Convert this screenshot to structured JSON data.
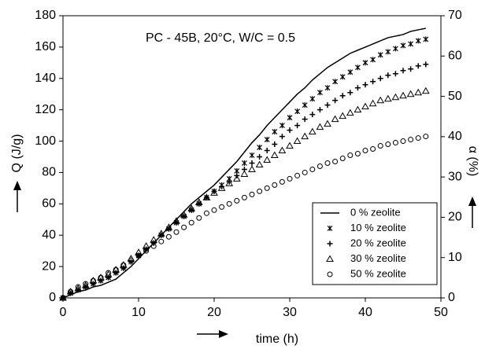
{
  "chart_data": {
    "type": "line",
    "title": "PC - 45B, 20°C, W/C = 0.5",
    "x_label": "time (h)",
    "y_label": "Q (J/g)",
    "y2_label": "α (%)",
    "xlim": [
      0,
      50
    ],
    "xticks": [
      0,
      10,
      20,
      30,
      40,
      50
    ],
    "ylim": [
      0,
      180
    ],
    "yticks": [
      0,
      20,
      40,
      60,
      80,
      100,
      120,
      140,
      160,
      180
    ],
    "y2lim": [
      0,
      70
    ],
    "y2ticks": [
      0,
      10,
      20,
      30,
      40,
      50,
      60,
      70
    ],
    "legend": "lower right",
    "x": [
      0,
      1,
      2,
      3,
      4,
      5,
      6,
      7,
      8,
      9,
      10,
      11,
      12,
      13,
      14,
      15,
      16,
      17,
      18,
      19,
      20,
      21,
      22,
      23,
      24,
      25,
      26,
      27,
      28,
      29,
      30,
      31,
      32,
      33,
      34,
      35,
      36,
      37,
      38,
      39,
      40,
      41,
      42,
      43,
      44,
      45,
      46,
      47,
      48
    ],
    "series": [
      {
        "name": "0 % zeolite",
        "color": "#000000",
        "marker": "none",
        "values": [
          0,
          2,
          4,
          5,
          7,
          8,
          10,
          12,
          16,
          20,
          25,
          30,
          35,
          40,
          45,
          50,
          55,
          60,
          64,
          68,
          72,
          77,
          82,
          87,
          93,
          99,
          104,
          110,
          115,
          120,
          125,
          130,
          134,
          139,
          143,
          147,
          150,
          153,
          156,
          158,
          160,
          162,
          164,
          166,
          167,
          168,
          170,
          171,
          172
        ]
      },
      {
        "name": "10 % zeolite",
        "color": "#000000",
        "marker": "star",
        "values": [
          0,
          3,
          5,
          7,
          9,
          11,
          13,
          16,
          19,
          23,
          27,
          31,
          35,
          40,
          44,
          48,
          52,
          56,
          60,
          64,
          68,
          72,
          76,
          81,
          86,
          91,
          96,
          101,
          106,
          110,
          115,
          119,
          123,
          127,
          131,
          134,
          138,
          141,
          144,
          147,
          150,
          152,
          155,
          157,
          159,
          161,
          162,
          164,
          165
        ]
      },
      {
        "name": "20 % zeolite",
        "color": "#000000",
        "marker": "plus",
        "values": [
          0,
          3,
          5,
          7,
          9,
          11,
          13,
          16,
          19,
          23,
          27,
          31,
          35,
          40,
          44,
          48,
          52,
          56,
          60,
          64,
          68,
          71,
          74,
          78,
          82,
          86,
          90,
          94,
          98,
          103,
          107,
          110,
          114,
          117,
          120,
          123,
          126,
          129,
          131,
          134,
          136,
          138,
          140,
          142,
          143,
          145,
          146,
          148,
          149
        ]
      },
      {
        "name": "30 % zeolite",
        "color": "#000000",
        "marker": "triangle",
        "values": [
          0,
          4,
          6,
          8,
          11,
          13,
          15,
          18,
          21,
          25,
          29,
          33,
          37,
          41,
          45,
          49,
          53,
          57,
          61,
          64,
          67,
          70,
          73,
          76,
          79,
          82,
          85,
          88,
          91,
          94,
          97,
          100,
          103,
          106,
          109,
          111,
          114,
          116,
          118,
          120,
          122,
          124,
          126,
          127,
          128,
          129,
          130,
          131,
          132
        ]
      },
      {
        "name": "50 % zeolite",
        "color": "#000000",
        "marker": "circle",
        "values": [
          0,
          4,
          7,
          9,
          11,
          13,
          16,
          18,
          21,
          24,
          27,
          30,
          33,
          36,
          39,
          42,
          45,
          48,
          51,
          54,
          56,
          58,
          60,
          62,
          64,
          66,
          68,
          70,
          72,
          74,
          76,
          78,
          80,
          82,
          84,
          86,
          87,
          89,
          91,
          92,
          94,
          95,
          97,
          98,
          99,
          100,
          101,
          102,
          103
        ]
      }
    ]
  }
}
